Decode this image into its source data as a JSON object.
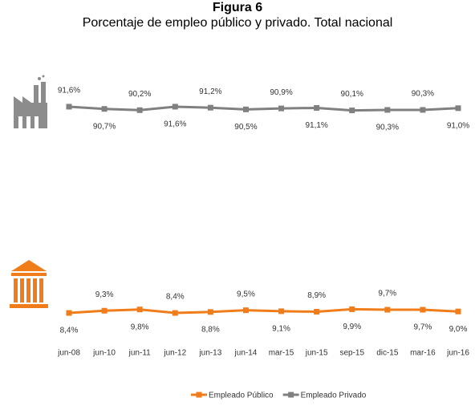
{
  "chart_data": {
    "type": "line",
    "title": "Figura 6",
    "subtitle": "Porcentaje de empleo público y privado. Total nacional",
    "categories": [
      "jun-08",
      "jun-10",
      "jun-11",
      "jun-12",
      "jun-13",
      "jun-14",
      "mar-15",
      "jun-15",
      "sep-15",
      "dic-15",
      "mar-16",
      "jun-16"
    ],
    "ylim": [
      0,
      100
    ],
    "series": [
      {
        "name": "Empleado Público",
        "color": "#f07d1a",
        "values": [
          8.4,
          9.3,
          9.8,
          8.4,
          8.8,
          9.5,
          9.1,
          8.9,
          9.9,
          9.7,
          9.7,
          9.0
        ],
        "value_labels": [
          "8,4%",
          "9,3%",
          "9,8%",
          "8,4%",
          "8,8%",
          "9,5%",
          "9,1%",
          "8,9%",
          "9,9%",
          "9,7%",
          "9,7%",
          "9,0%"
        ]
      },
      {
        "name": "Empleado Privado",
        "color": "#808080",
        "values": [
          91.6,
          90.7,
          90.2,
          91.6,
          91.2,
          90.5,
          90.9,
          91.1,
          90.1,
          90.3,
          90.3,
          91.0
        ],
        "value_labels": [
          "91,6%",
          "90,7%",
          "90,2%",
          "91,6%",
          "91,2%",
          "90,5%",
          "90,9%",
          "91,1%",
          "90,1%",
          "90,3%",
          "90,3%",
          "91,0%"
        ]
      }
    ]
  }
}
